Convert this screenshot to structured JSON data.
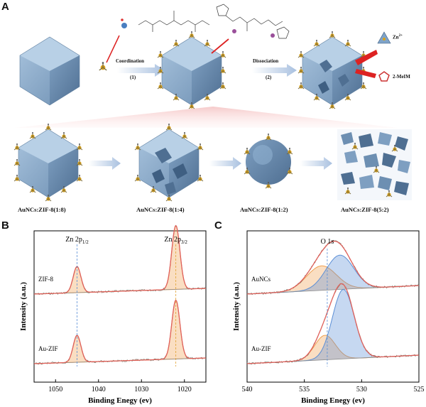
{
  "panels": {
    "a": "A",
    "b": "B",
    "c": "C"
  },
  "top": {
    "step1_label": "Coordination",
    "step1_num": "(1)",
    "step2_label": "Dissociation",
    "step2_num": "(2)",
    "legend_zn": "Zn",
    "legend_zn_sup": "2+",
    "legend_mim": "2-MeIM"
  },
  "row": {
    "c1": "AuNCs:ZIF-8(1:8)",
    "c2": "AuNCs:ZIF-8(1:4)",
    "c3": "AuNCs:ZIF-8(1:2)",
    "c4": "AuNCs:ZIF-8(5:2)"
  },
  "chart_data": [
    {
      "type": "line",
      "panel": "B",
      "xlabel": "Binding Enegy (ev)",
      "ylabel": "Intensity (a.u.)",
      "xlim": [
        1055,
        1015
      ],
      "xticks": [
        1050,
        1040,
        1030,
        1020
      ],
      "peak_labels": [
        {
          "text": "Zn 2p",
          "sub": "1/2",
          "x": 1045.0
        },
        {
          "text": "Zn 2p",
          "sub": "3/2",
          "x": 1022.0
        }
      ],
      "series": [
        {
          "name": "ZIF-8",
          "peaks": [
            {
              "center": 1045.0,
              "height": 0.32,
              "width": 0.9
            },
            {
              "center": 1022.0,
              "height": 0.78,
              "width": 0.95
            }
          ]
        },
        {
          "name": "Au-ZIF",
          "peaks": [
            {
              "center": 1045.0,
              "height": 0.33,
              "width": 0.9
            },
            {
              "center": 1022.0,
              "height": 0.72,
              "width": 0.95
            }
          ]
        }
      ]
    },
    {
      "type": "line",
      "panel": "C",
      "xlabel": "Binding Enegy (ev)",
      "ylabel": "Intensity (a.u.)",
      "xlim": [
        540,
        525
      ],
      "xticks": [
        540,
        535,
        530,
        525
      ],
      "peak_labels": [
        {
          "text": "O 1s",
          "x": 533.0
        }
      ],
      "series": [
        {
          "name": "AuNCs",
          "components": [
            {
              "center": 533.5,
              "height": 0.3,
              "width": 1.3
            },
            {
              "center": 531.9,
              "height": 0.42,
              "width": 1.2
            }
          ]
        },
        {
          "name": "Au-ZIF",
          "components": [
            {
              "center": 533.2,
              "height": 0.3,
              "width": 0.9
            },
            {
              "center": 531.6,
              "height": 0.85,
              "width": 0.95
            }
          ]
        }
      ]
    }
  ]
}
